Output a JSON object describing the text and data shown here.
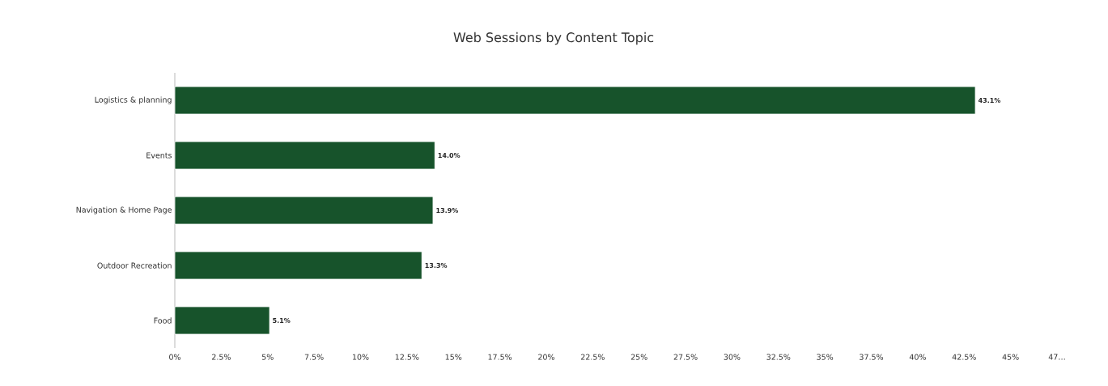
{
  "chart_data": {
    "type": "bar",
    "orientation": "horizontal",
    "title": "Web Sessions by Content Topic",
    "categories": [
      "Logistics & planning",
      "Events",
      "Navigation & Home Page",
      "Outdoor Recreation",
      "Food"
    ],
    "values": [
      43.1,
      14.0,
      13.9,
      13.3,
      5.1
    ],
    "value_labels": [
      "43.1%",
      "14.0%",
      "13.9%",
      "13.3%",
      "5.1%"
    ],
    "color": "#17532b",
    "xlim": [
      0,
      47.5
    ],
    "xticks": [
      {
        "value": 0,
        "label": "0%"
      },
      {
        "value": 2.5,
        "label": "2.5%"
      },
      {
        "value": 5,
        "label": "5%"
      },
      {
        "value": 7.5,
        "label": "7.5%"
      },
      {
        "value": 10,
        "label": "10%"
      },
      {
        "value": 12.5,
        "label": "12.5%"
      },
      {
        "value": 15,
        "label": "15%"
      },
      {
        "value": 17.5,
        "label": "17.5%"
      },
      {
        "value": 20,
        "label": "20%"
      },
      {
        "value": 22.5,
        "label": "22.5%"
      },
      {
        "value": 25,
        "label": "25%"
      },
      {
        "value": 27.5,
        "label": "27.5%"
      },
      {
        "value": 30,
        "label": "30%"
      },
      {
        "value": 32.5,
        "label": "32.5%"
      },
      {
        "value": 35,
        "label": "35%"
      },
      {
        "value": 37.5,
        "label": "37.5%"
      },
      {
        "value": 40,
        "label": "40%"
      },
      {
        "value": 42.5,
        "label": "42.5%"
      },
      {
        "value": 45,
        "label": "45%"
      },
      {
        "value": 47.5,
        "label": "47…"
      }
    ],
    "grid": false
  }
}
